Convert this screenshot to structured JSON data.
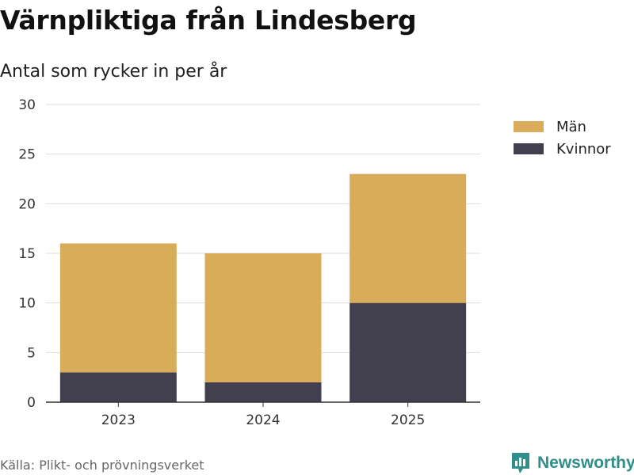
{
  "header": {
    "title": "Värnpliktiga från Lindesberg",
    "subtitle": "Antal som rycker in per år"
  },
  "chart_data": {
    "type": "bar",
    "stacked": true,
    "title": "Värnpliktiga från Lindesberg",
    "subtitle": "Antal som rycker in per år",
    "categories": [
      "2023",
      "2024",
      "2025"
    ],
    "series": [
      {
        "name": "Kvinnor",
        "values": [
          3,
          2,
          10
        ],
        "color": "#42404f"
      },
      {
        "name": "Män",
        "values": [
          13,
          13,
          13
        ],
        "color": "#d9ac5a"
      }
    ],
    "ylim": [
      0,
      30
    ],
    "yticks": [
      "0",
      "5",
      "10",
      "15",
      "20",
      "25",
      "30"
    ],
    "grid": true,
    "xlabel": "",
    "ylabel": "",
    "legend_position": "right"
  },
  "legend": {
    "items": [
      {
        "label": "Män",
        "color": "#d9ac5a"
      },
      {
        "label": "Kvinnor",
        "color": "#42404f"
      }
    ]
  },
  "footer": {
    "source": "Källa: Plikt- och prövningsverket",
    "brand": "Newsworthy",
    "brand_color": "#2f8f8a"
  }
}
